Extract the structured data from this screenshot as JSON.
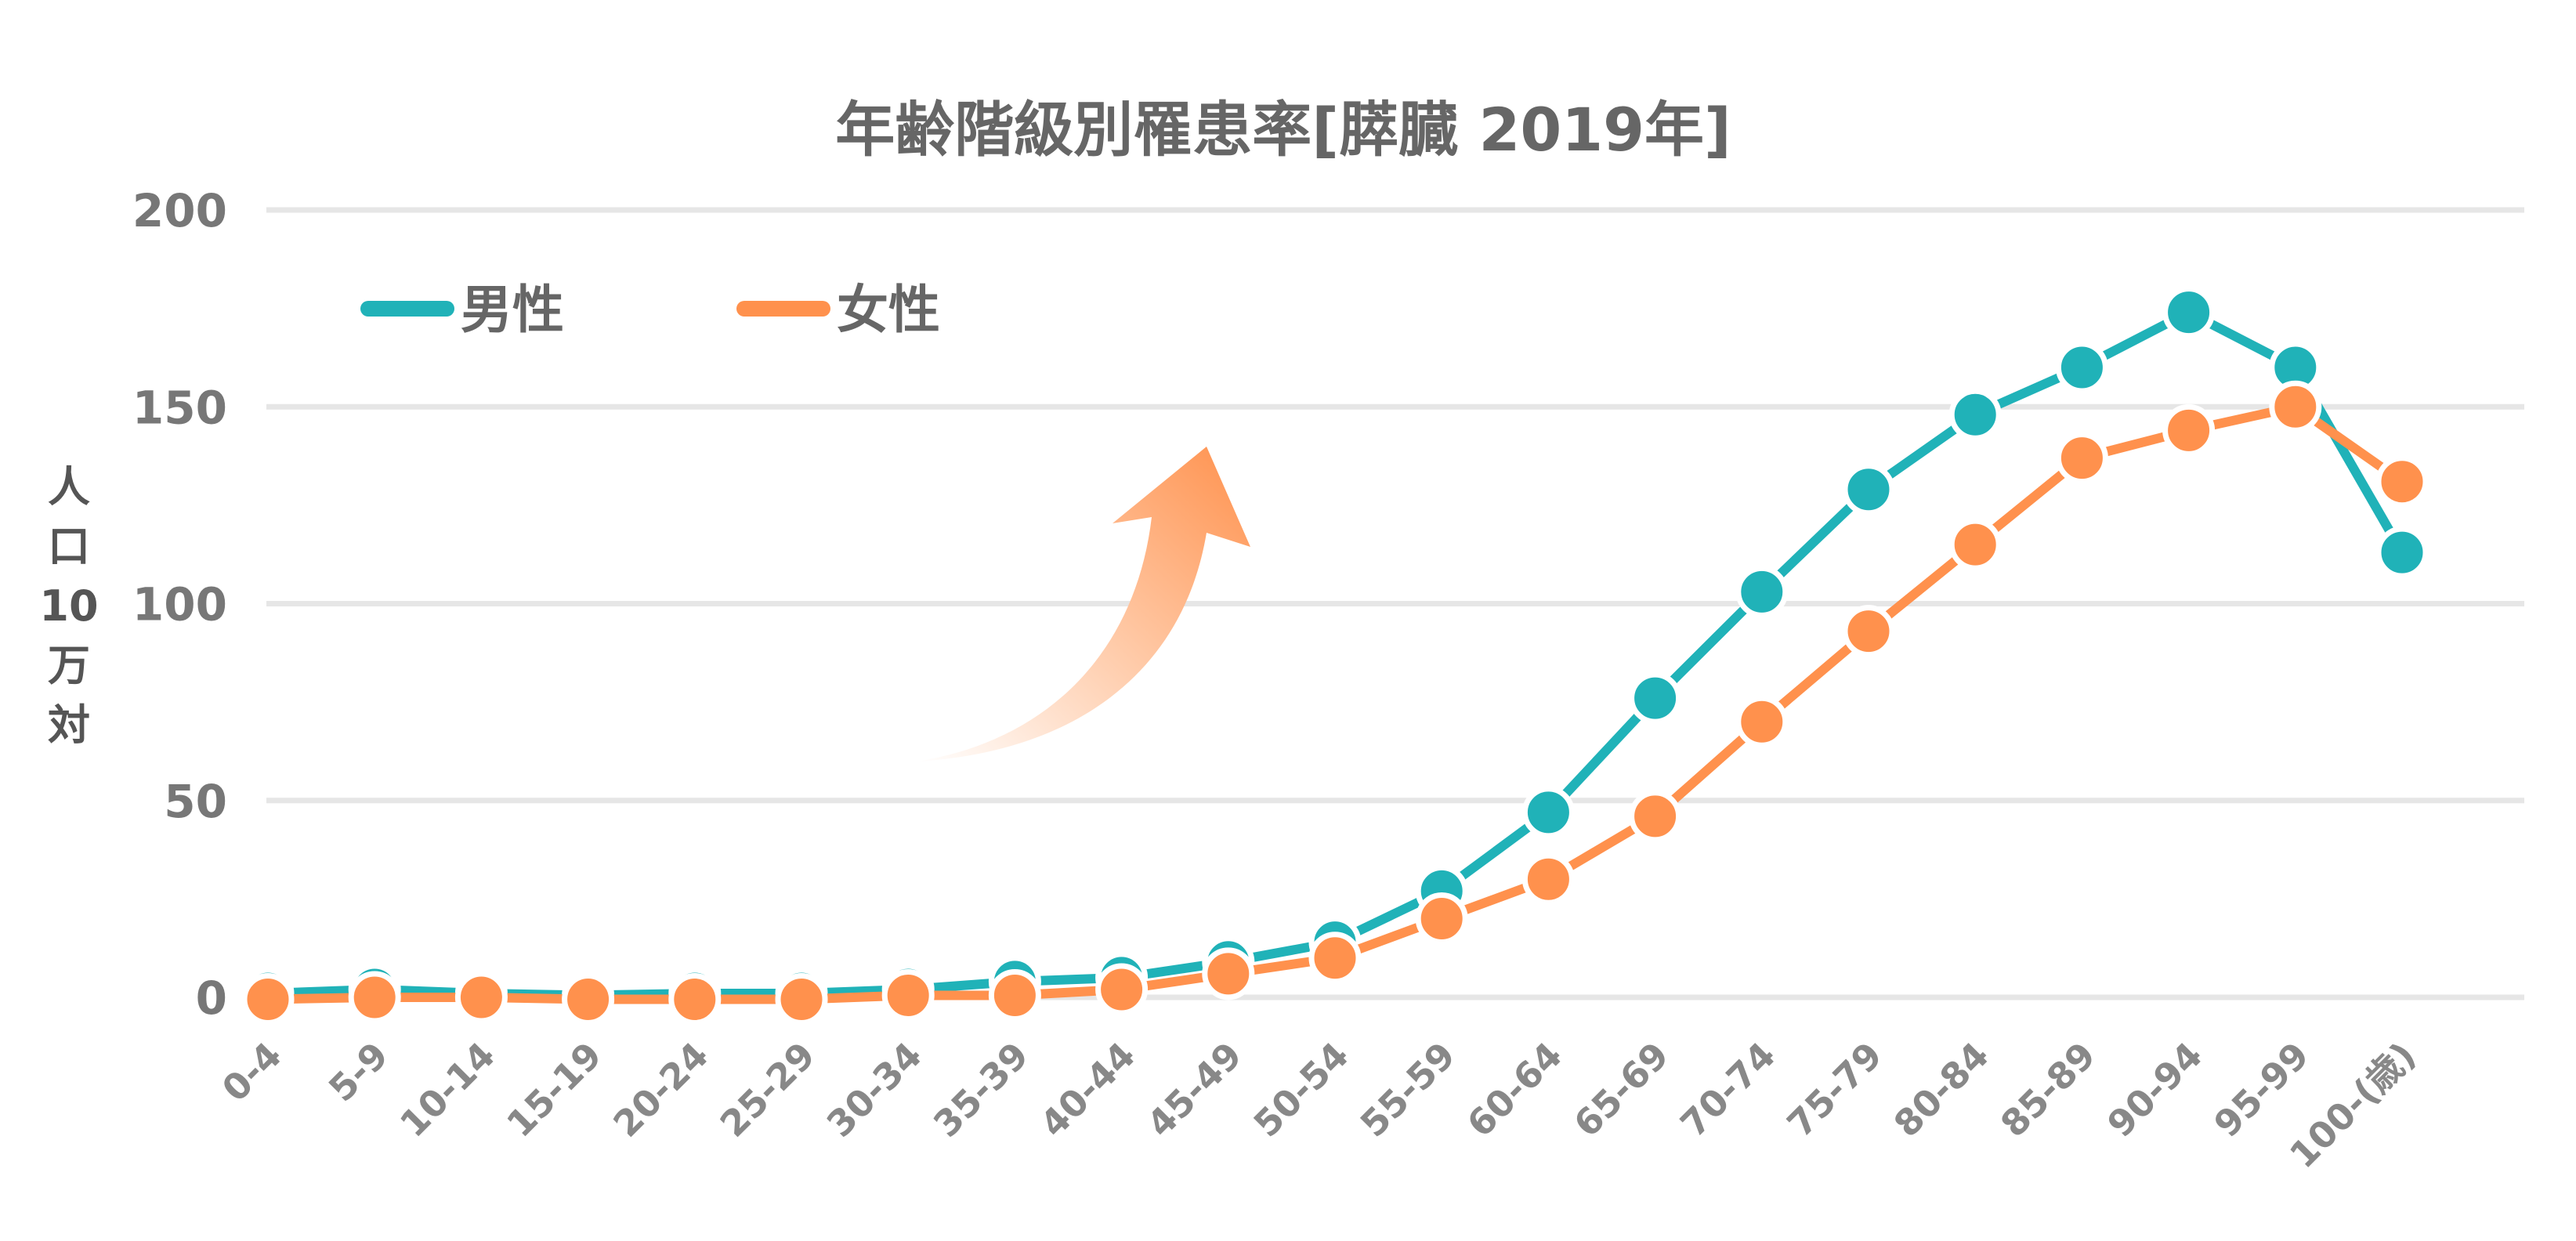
{
  "chart_data": {
    "type": "line",
    "title": "年齢階級別罹患率[膵臓 2019年]",
    "ylabel_chars": [
      "人",
      "口",
      "10",
      "万",
      "対"
    ],
    "xlabel": "",
    "ylim": [
      0,
      200
    ],
    "yticks": [
      0,
      50,
      100,
      150,
      200
    ],
    "grid": true,
    "legend_position": "top-left",
    "categories": [
      "0-4",
      "5-9",
      "10-14",
      "15-19",
      "20-24",
      "25-29",
      "30-34",
      "35-39",
      "40-44",
      "45-49",
      "50-54",
      "55-59",
      "60-64",
      "65-69",
      "70-74",
      "75-79",
      "80-84",
      "85-89",
      "90-94",
      "95-99",
      "100-(歳)"
    ],
    "series": [
      {
        "name": "男性",
        "color": "#20b2b8",
        "values": [
          1,
          2,
          1,
          0.5,
          1,
          1,
          2,
          4,
          5,
          9,
          14,
          27,
          47,
          76,
          103,
          129,
          148,
          160,
          174,
          160,
          113
        ]
      },
      {
        "name": "女性",
        "color": "#ff914d",
        "values": [
          -0.5,
          0,
          0,
          -0.5,
          -0.5,
          -0.5,
          0.5,
          0.5,
          2,
          6,
          10,
          20,
          30,
          46,
          70,
          93,
          115,
          137,
          144,
          150,
          131
        ]
      }
    ]
  }
}
